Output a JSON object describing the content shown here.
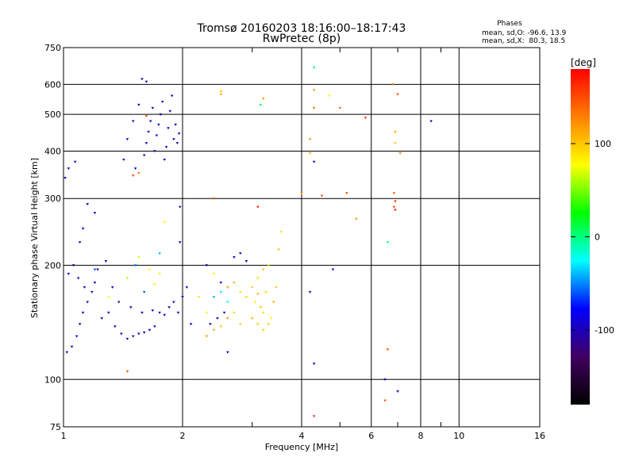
{
  "chart_data": {
    "type": "scatter",
    "title": "Tromsø 20160203 18:16:00–18:17:43",
    "subtitle": "RwPretec (8p)",
    "xlabel": "Frequency [MHz]",
    "ylabel": "Stationary phase Virtual Height [km]",
    "x_scale": "log",
    "y_scale": "log",
    "xlim": [
      1,
      16
    ],
    "ylim": [
      75,
      750
    ],
    "x_ticks": [
      1,
      2,
      4,
      6,
      8,
      10,
      16
    ],
    "x_tick_labels": [
      "1",
      "2",
      "4",
      "6",
      "8",
      "10",
      "16"
    ],
    "y_ticks": [
      75,
      100,
      200,
      300,
      400,
      500,
      600,
      750
    ],
    "y_tick_labels": [
      "75",
      "100",
      "200",
      "300",
      "400",
      "500",
      "600",
      "750"
    ],
    "grid": true,
    "stats": {
      "heading": "Phases",
      "line1": "mean, sd,O: -96.6, 13.9",
      "line2": "mean, sd,X:  80.3, 18.5"
    },
    "colorbar": {
      "label": "[deg]",
      "range": [
        -180,
        180
      ],
      "ticks": [
        100,
        0,
        -100
      ],
      "tick_labels": [
        "100",
        "0",
        "-100"
      ],
      "colors": [
        "#ff0000",
        "#ff8000",
        "#ffff00",
        "#00ff00",
        "#00ffff",
        "#0000ff",
        "#400060",
        "#000000"
      ]
    },
    "series": [
      {
        "points": [
          [
            1.02,
            118,
            -105
          ],
          [
            1.05,
            122,
            -100
          ],
          [
            1.08,
            130,
            -98
          ],
          [
            1.1,
            140,
            -102
          ],
          [
            1.12,
            150,
            -95
          ],
          [
            1.15,
            160,
            -108
          ],
          [
            1.18,
            170,
            -100
          ],
          [
            1.2,
            180,
            -97
          ],
          [
            1.25,
            145,
            -103
          ],
          [
            1.3,
            150,
            -99
          ],
          [
            1.35,
            138,
            -101
          ],
          [
            1.4,
            132,
            -96
          ],
          [
            1.45,
            128,
            -104
          ],
          [
            1.5,
            130,
            -100
          ],
          [
            1.55,
            132,
            -98
          ],
          [
            1.6,
            133,
            -102
          ],
          [
            1.65,
            135,
            -100
          ],
          [
            1.7,
            138,
            -97
          ],
          [
            1.03,
            190,
            -100
          ],
          [
            1.06,
            200,
            -105
          ],
          [
            1.09,
            185,
            -98
          ],
          [
            1.13,
            175,
            -102
          ],
          [
            1.22,
            195,
            -99
          ],
          [
            1.28,
            205,
            -101
          ],
          [
            1.33,
            175,
            -96
          ],
          [
            1.38,
            160,
            -103
          ],
          [
            1.48,
            155,
            -100
          ],
          [
            1.58,
            150,
            -97
          ],
          [
            1.68,
            152,
            -101
          ],
          [
            1.75,
            150,
            -99
          ],
          [
            1.8,
            148,
            -100
          ],
          [
            1.85,
            155,
            -103
          ],
          [
            1.9,
            160,
            -98
          ],
          [
            1.95,
            150,
            -100
          ],
          [
            2.0,
            165,
            -95
          ],
          [
            2.05,
            175,
            -100
          ],
          [
            2.1,
            140,
            -90
          ],
          [
            1.01,
            340,
            -100
          ],
          [
            1.03,
            360,
            -98
          ],
          [
            1.07,
            375,
            -102
          ],
          [
            1.15,
            290,
            -100
          ],
          [
            1.2,
            275,
            -97
          ],
          [
            1.1,
            230,
            -100
          ],
          [
            1.12,
            250,
            -99
          ],
          [
            1.6,
            390,
            -100
          ],
          [
            1.62,
            420,
            -98
          ],
          [
            1.64,
            450,
            -102
          ],
          [
            1.66,
            480,
            -100
          ],
          [
            1.68,
            520,
            -99
          ],
          [
            1.7,
            400,
            -101
          ],
          [
            1.72,
            440,
            -97
          ],
          [
            1.74,
            470,
            -100
          ],
          [
            1.76,
            500,
            -103
          ],
          [
            1.78,
            540,
            -100
          ],
          [
            1.8,
            380,
            -98
          ],
          [
            1.82,
            410,
            -100
          ],
          [
            1.84,
            460,
            -101
          ],
          [
            1.86,
            510,
            -99
          ],
          [
            1.88,
            560,
            -100
          ],
          [
            1.9,
            430,
            -97
          ],
          [
            1.92,
            470,
            -100
          ],
          [
            1.94,
            420,
            -102
          ],
          [
            1.96,
            445,
            -100
          ],
          [
            1.58,
            620,
            -100
          ],
          [
            1.62,
            610,
            -98
          ],
          [
            1.55,
            530,
            -101
          ],
          [
            1.5,
            480,
            -99
          ],
          [
            1.45,
            430,
            -100
          ],
          [
            1.42,
            380,
            -97
          ],
          [
            1.52,
            360,
            -95
          ],
          [
            1.97,
            285,
            -105
          ],
          [
            1.97,
            230,
            -100
          ],
          [
            2.3,
            200,
            -100
          ],
          [
            2.5,
            180,
            -90
          ],
          [
            2.6,
            175,
            -95
          ],
          [
            2.7,
            210,
            -100
          ],
          [
            2.8,
            215,
            -98
          ],
          [
            2.9,
            205,
            -102
          ],
          [
            2.55,
            150,
            -100
          ],
          [
            2.45,
            145,
            -97
          ],
          [
            2.35,
            140,
            -100
          ],
          [
            2.3,
            130,
            -95
          ],
          [
            2.6,
            118,
            -100
          ],
          [
            4.3,
            375,
            -100
          ],
          [
            4.2,
            170,
            -100
          ],
          [
            4.3,
            110,
            -95
          ],
          [
            6.5,
            100,
            -100
          ],
          [
            7.0,
            93,
            -100
          ],
          [
            8.5,
            480,
            -100
          ],
          [
            4.8,
            195,
            -90
          ],
          [
            2.4,
            165,
            -40
          ],
          [
            2.5,
            170,
            -30
          ],
          [
            2.6,
            160,
            -20
          ],
          [
            2.4,
            300,
            10
          ],
          [
            4.3,
            665,
            0
          ],
          [
            6.6,
            230,
            0
          ],
          [
            1.52,
            200,
            -50
          ],
          [
            1.6,
            170,
            -60
          ],
          [
            1.75,
            215,
            -40
          ],
          [
            1.2,
            195,
            -60
          ],
          [
            1.3,
            165,
            80
          ],
          [
            1.45,
            185,
            60
          ],
          [
            1.55,
            210,
            70
          ],
          [
            1.65,
            195,
            75
          ],
          [
            1.7,
            178,
            85
          ],
          [
            1.75,
            190,
            70
          ],
          [
            1.8,
            260,
            80
          ],
          [
            2.2,
            165,
            85
          ],
          [
            2.3,
            150,
            80
          ],
          [
            2.4,
            190,
            80
          ],
          [
            2.6,
            175,
            100
          ],
          [
            2.7,
            180,
            110
          ],
          [
            2.8,
            170,
            90
          ],
          [
            2.9,
            165,
            95
          ],
          [
            3.0,
            175,
            100
          ],
          [
            3.05,
            160,
            85
          ],
          [
            3.1,
            168,
            110
          ],
          [
            3.15,
            155,
            100
          ],
          [
            3.2,
            150,
            90
          ],
          [
            3.25,
            170,
            95
          ],
          [
            3.3,
            140,
            100
          ],
          [
            3.35,
            145,
            80
          ],
          [
            3.4,
            160,
            110
          ],
          [
            3.45,
            175,
            100
          ],
          [
            3.5,
            220,
            100
          ],
          [
            3.55,
            245,
            90
          ],
          [
            3.1,
            140,
            100
          ],
          [
            3.2,
            135,
            100
          ],
          [
            3.0,
            145,
            110
          ],
          [
            2.8,
            140,
            100
          ],
          [
            2.7,
            150,
            95
          ],
          [
            2.6,
            145,
            120
          ],
          [
            2.5,
            138,
            100
          ],
          [
            2.4,
            135,
            110
          ],
          [
            2.3,
            130,
            100
          ],
          [
            3.2,
            195,
            100
          ],
          [
            3.1,
            185,
            90
          ],
          [
            3.3,
            200,
            85
          ],
          [
            2.5,
            565,
            110
          ],
          [
            2.5,
            575,
            100
          ],
          [
            4.3,
            580,
            120
          ],
          [
            4.3,
            520,
            130
          ],
          [
            4.2,
            430,
            120
          ],
          [
            4.2,
            395,
            110
          ],
          [
            4.5,
            305,
            150
          ],
          [
            4.0,
            310,
            130
          ],
          [
            5.0,
            520,
            140
          ],
          [
            5.2,
            310,
            150
          ],
          [
            5.5,
            265,
            120
          ],
          [
            5.8,
            490,
            160
          ],
          [
            6.8,
            600,
            130
          ],
          [
            7.0,
            565,
            150
          ],
          [
            6.9,
            450,
            110
          ],
          [
            6.9,
            420,
            100
          ],
          [
            7.1,
            395,
            130
          ],
          [
            6.85,
            310,
            140
          ],
          [
            6.9,
            295,
            160
          ],
          [
            6.85,
            285,
            150
          ],
          [
            6.9,
            280,
            170
          ],
          [
            6.6,
            120,
            150
          ],
          [
            6.5,
            88,
            150
          ],
          [
            4.3,
            80,
            160
          ],
          [
            1.5,
            345,
            150
          ],
          [
            1.55,
            350,
            130
          ],
          [
            1.45,
            105,
            140
          ],
          [
            1.62,
            495,
            150
          ],
          [
            3.1,
            285,
            170
          ],
          [
            3.2,
            550,
            120
          ],
          [
            4.7,
            560,
            80
          ],
          [
            2.4,
            300,
            140
          ],
          [
            3.15,
            530,
            0
          ]
        ]
      }
    ]
  }
}
